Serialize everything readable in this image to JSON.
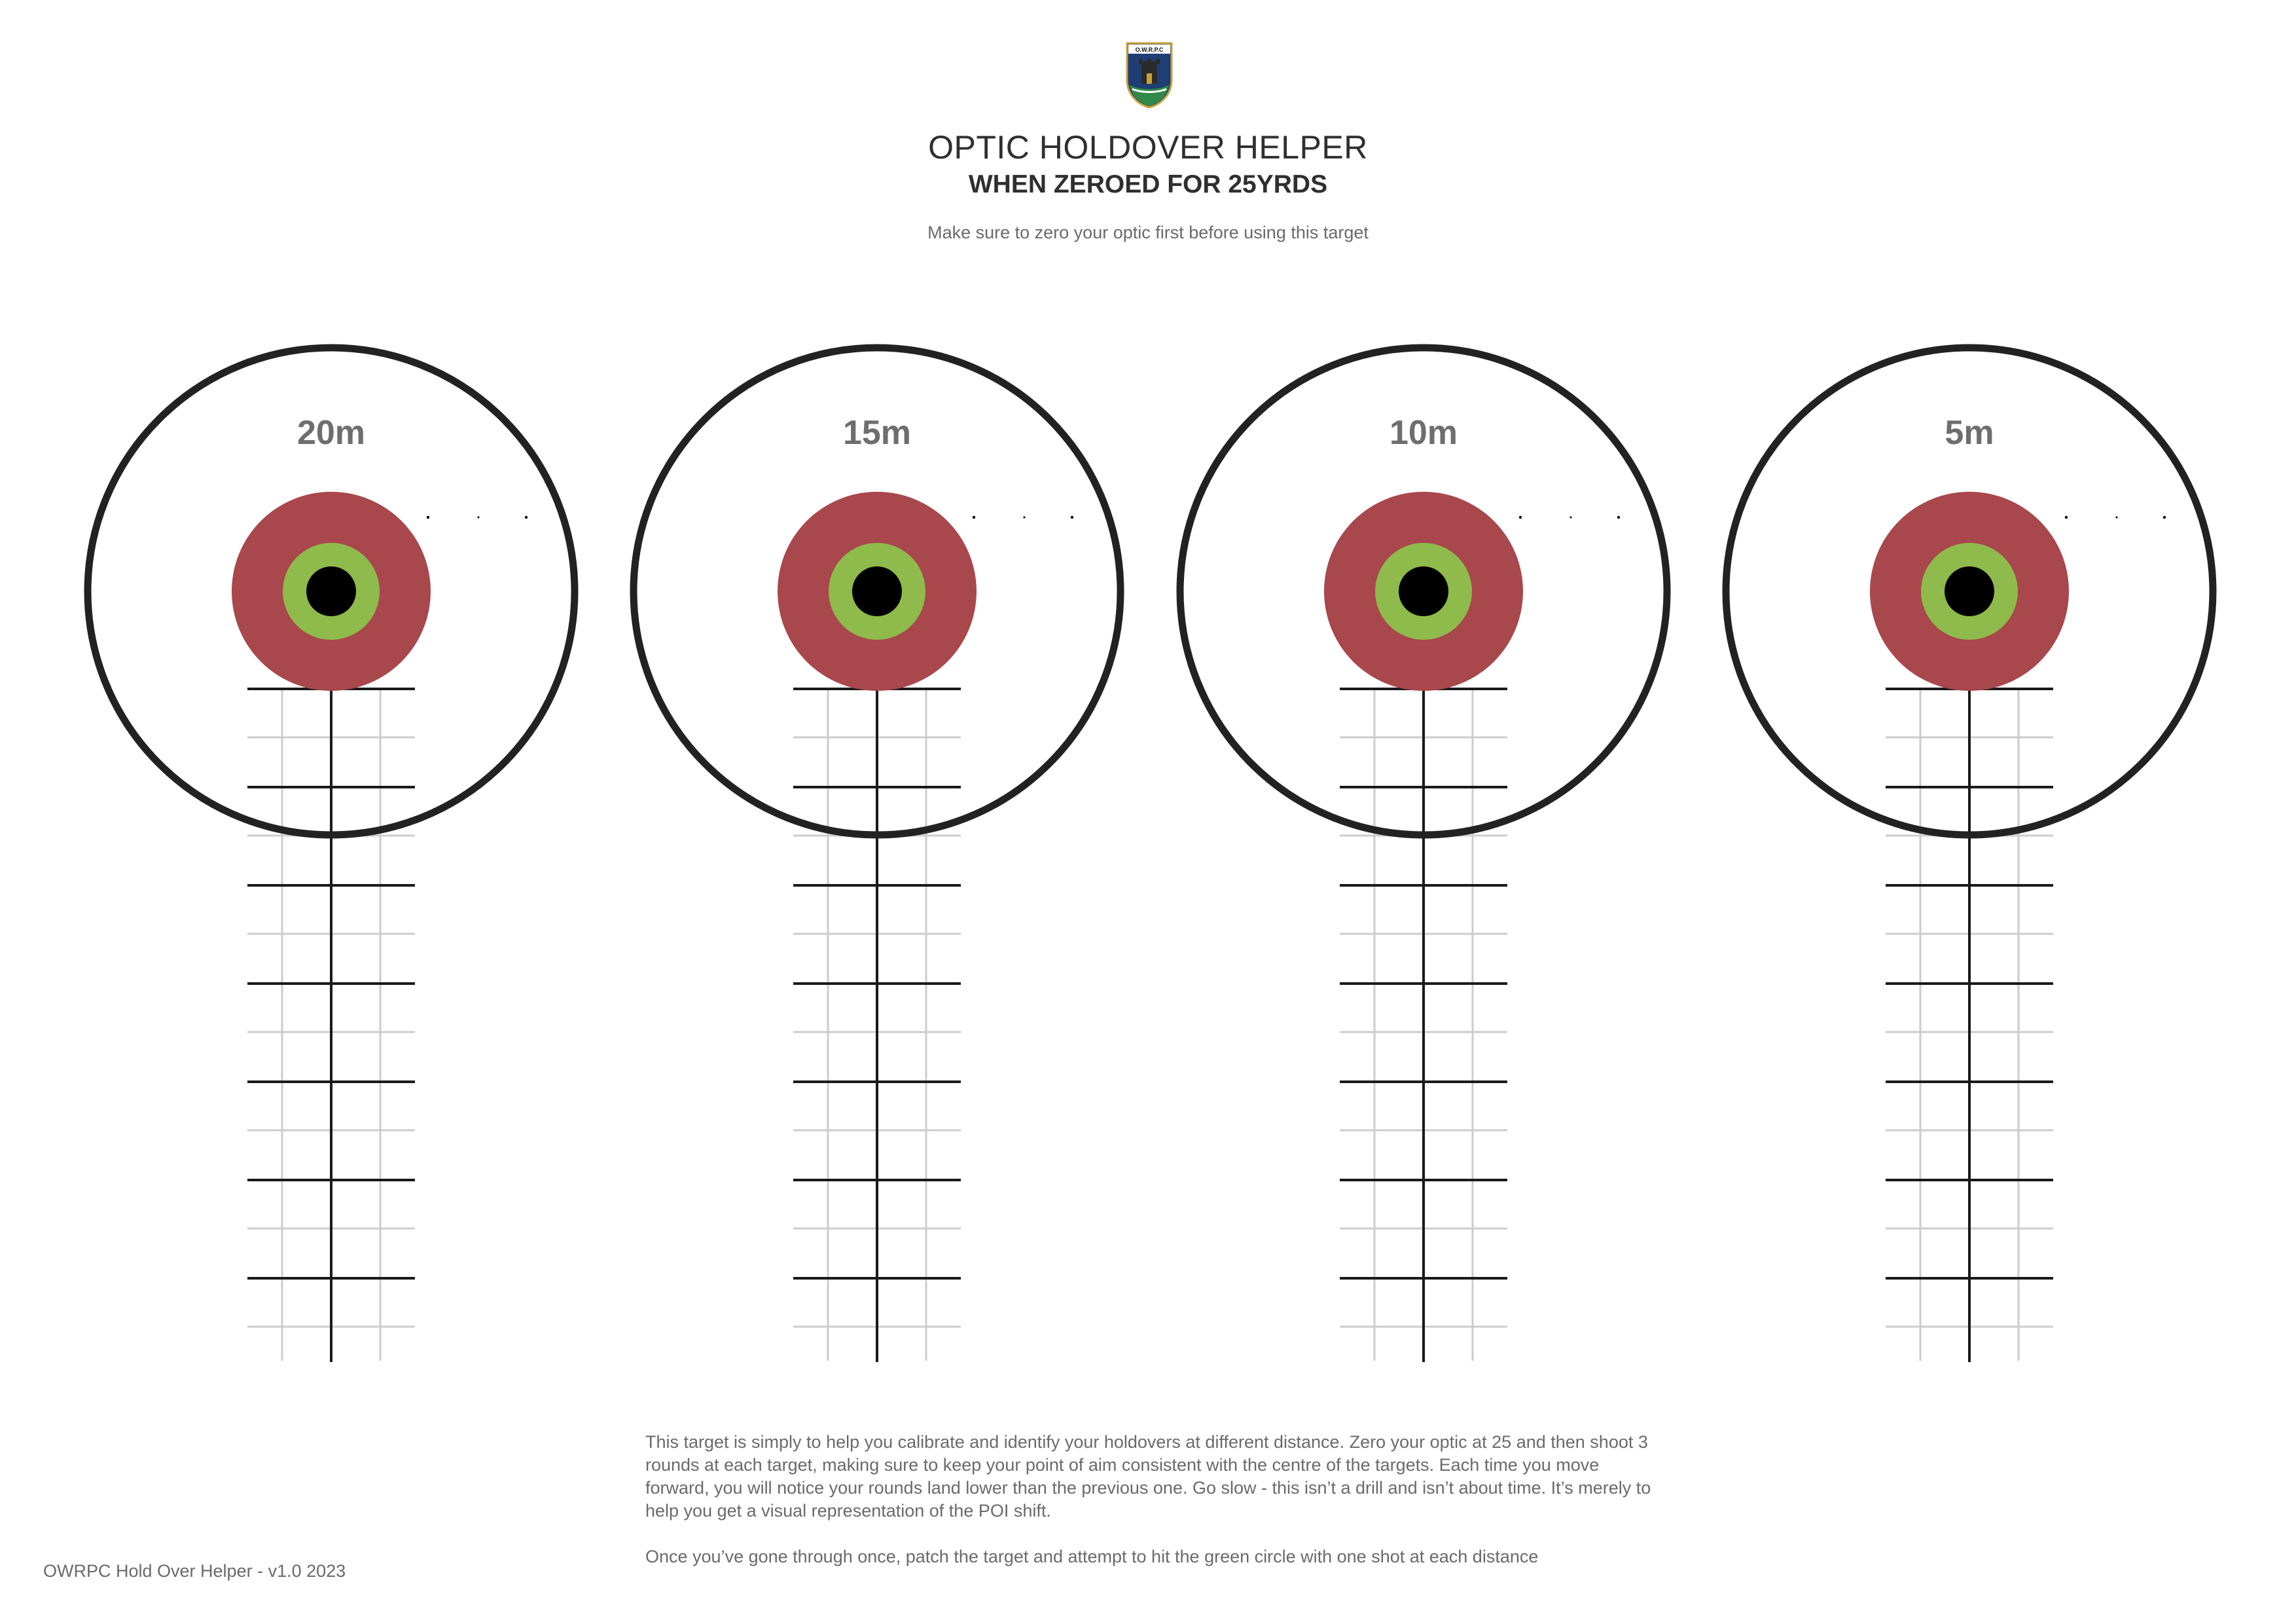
{
  "header": {
    "logo_text": "O.W.R.P.C",
    "title": "OPTIC HOLDOVER HELPER",
    "subtitle": "WHEN ZEROED FOR 25YRDS",
    "note": "Make sure to zero your optic first before using this target"
  },
  "targets": [
    {
      "distance_label": "20m"
    },
    {
      "distance_label": "15m"
    },
    {
      "distance_label": "10m"
    },
    {
      "distance_label": "5m"
    }
  ],
  "colors": {
    "outer_ring": "#222222",
    "red_zone": "#a8474c",
    "green_ring": "#8fba4c",
    "bullseye": "#000000",
    "major_line": "#1a1a1a",
    "minor_line": "#cccccc"
  },
  "instructions": {
    "paragraph_1": "This target is simply to help you calibrate and identify your holdovers at different distance. Zero your optic at 25 and then shoot 3 rounds at each target, making sure to keep your point of aim consistent with the centre of the targets. Each time you move forward, you will notice your rounds land lower than the previous one. Go slow - this isn’t a drill and isn’t about time. It’s merely to help you get a visual representation of the POI shift.",
    "paragraph_2": "Once you’ve gone through once, patch the target and attempt to hit the green circle with one shot at each distance"
  },
  "footer": {
    "text": "OWRPC Hold Over Helper - v1.0 2023"
  }
}
